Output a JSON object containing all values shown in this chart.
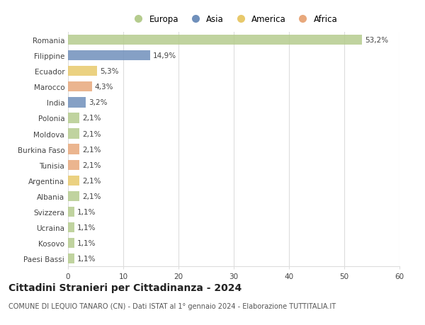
{
  "countries": [
    "Romania",
    "Filippine",
    "Ecuador",
    "Marocco",
    "India",
    "Polonia",
    "Moldova",
    "Burkina Faso",
    "Tunisia",
    "Argentina",
    "Albania",
    "Svizzera",
    "Ucraina",
    "Kosovo",
    "Paesi Bassi"
  ],
  "values": [
    53.2,
    14.9,
    5.3,
    4.3,
    3.2,
    2.1,
    2.1,
    2.1,
    2.1,
    2.1,
    2.1,
    1.1,
    1.1,
    1.1,
    1.1
  ],
  "labels": [
    "53,2%",
    "14,9%",
    "5,3%",
    "4,3%",
    "3,2%",
    "2,1%",
    "2,1%",
    "2,1%",
    "2,1%",
    "2,1%",
    "2,1%",
    "1,1%",
    "1,1%",
    "1,1%",
    "1,1%"
  ],
  "continents": [
    "Europa",
    "Asia",
    "America",
    "Africa",
    "Asia",
    "Europa",
    "Europa",
    "Africa",
    "Africa",
    "America",
    "Europa",
    "Europa",
    "Europa",
    "Europa",
    "Europa"
  ],
  "colors": {
    "Europa": "#b5cc8e",
    "Asia": "#7090bb",
    "America": "#e8c96b",
    "Africa": "#e8a87c"
  },
  "legend_order": [
    "Europa",
    "Asia",
    "America",
    "Africa"
  ],
  "xlim": [
    0,
    60
  ],
  "xticks": [
    0,
    10,
    20,
    30,
    40,
    50,
    60
  ],
  "title": "Cittadini Stranieri per Cittadinanza - 2024",
  "subtitle": "COMUNE DI LEQUIO TANARO (CN) - Dati ISTAT al 1° gennaio 2024 - Elaborazione TUTTITALIA.IT",
  "bg_color": "#ffffff",
  "grid_color": "#dddddd",
  "bar_height": 0.65,
  "label_fontsize": 7.5,
  "tick_fontsize": 7.5,
  "title_fontsize": 10,
  "subtitle_fontsize": 7
}
